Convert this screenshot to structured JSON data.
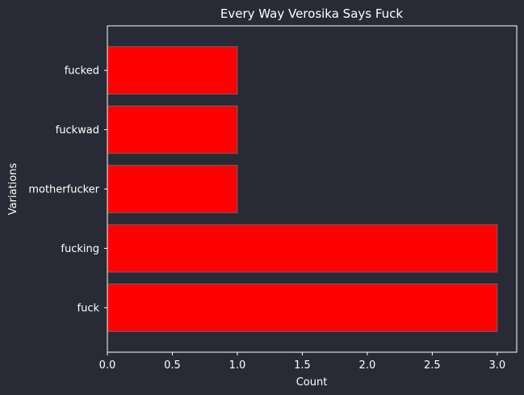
{
  "chart_data": {
    "type": "bar",
    "orientation": "horizontal",
    "title": "Every Way Verosika Says Fuck",
    "xlabel": "Count",
    "ylabel": "Variations",
    "categories": [
      "fuck",
      "fucking",
      "motherfucker",
      "fuckwad",
      "fucked"
    ],
    "values": [
      3,
      3,
      1,
      1,
      1
    ],
    "xlim": [
      0,
      3.15
    ],
    "xticks": [
      "0.0",
      "0.5",
      "1.0",
      "1.5",
      "2.0",
      "2.5",
      "3.0"
    ],
    "grid": false,
    "legend": "none",
    "colors": {
      "background": "#282b35",
      "bar": "#ff0000",
      "bar_edge": "#666666",
      "axis": "#ffffff",
      "text": "#ffffff"
    }
  }
}
